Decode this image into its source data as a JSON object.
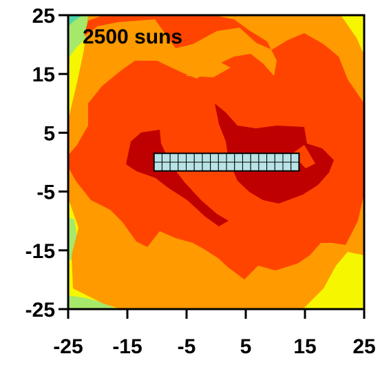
{
  "chart_data": {
    "type": "heatmap",
    "title": "",
    "annotation": "2500 suns",
    "xlabel": "",
    "ylabel": "",
    "xlim": [
      -25,
      25
    ],
    "ylim": [
      -25,
      25
    ],
    "x_ticks": [
      "-25",
      "-15",
      "-5",
      "5",
      "15",
      "25"
    ],
    "y_ticks": [
      "25",
      "15",
      "5",
      "-5",
      "-15",
      "-25"
    ],
    "x_tick_values": [
      -25,
      -15,
      -5,
      5,
      15,
      25
    ],
    "y_tick_values": [
      25,
      15,
      5,
      -5,
      -15,
      -25
    ],
    "grid": false,
    "color_levels": [
      {
        "level": "low",
        "color": "#a6e86a"
      },
      {
        "level": "medium-low",
        "color": "#f6f600"
      },
      {
        "level": "medium",
        "color": "#ff9a00"
      },
      {
        "level": "high",
        "color": "#ff4400"
      },
      {
        "level": "highest",
        "color": "#bf0000"
      }
    ],
    "cell_array": {
      "x_range": [
        -10.5,
        14
      ],
      "y_range": [
        -1.5,
        1.5
      ],
      "columns": 18,
      "rows": 2,
      "fill": "#b9e3e6"
    }
  }
}
